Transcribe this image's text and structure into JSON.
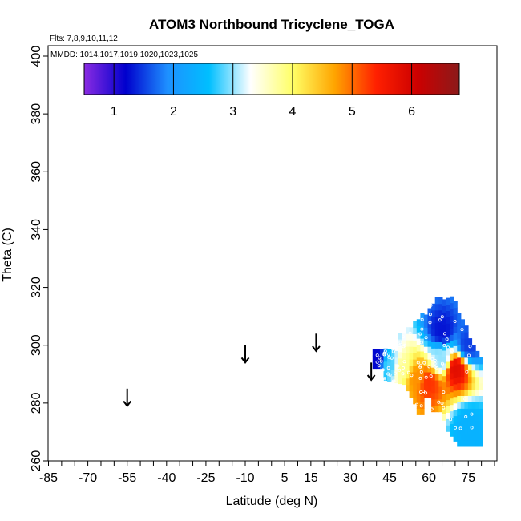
{
  "chart_data": {
    "type": "heatmap",
    "title": "ATOM3 Northbound Tricyclene_TOGA",
    "flights_note": "Flts: 7,8,9,10,11,12",
    "dates_note": "MMDD: 1014,1017,1019,1020,1023,1025",
    "xlabel": "Latitude (deg N)",
    "ylabel": "Theta (C)",
    "xlim": [
      -85,
      85
    ],
    "ylim": [
      260,
      400
    ],
    "x_ticks": [
      "-85",
      "-70",
      "-55",
      "-40",
      "-25",
      "-10",
      "5",
      "15",
      "30",
      "45",
      "60",
      "75"
    ],
    "x_tick_values": [
      -85,
      -70,
      -55,
      -40,
      -25,
      -10,
      5,
      15,
      30,
      45,
      60,
      75
    ],
    "y_ticks": [
      "260",
      "280",
      "300",
      "320",
      "340",
      "360",
      "380",
      "400"
    ],
    "y_tick_values": [
      260,
      280,
      300,
      320,
      340,
      360,
      380,
      400
    ],
    "colorbar": {
      "range": [
        0.5,
        6.8
      ],
      "ticks": [
        "1",
        "2",
        "3",
        "4",
        "5",
        "6"
      ],
      "tick_values": [
        1,
        2,
        3,
        4,
        5,
        6
      ],
      "stops": [
        "#8a2be2",
        "#0000cd",
        "#1e90ff",
        "#00bfff",
        "#ffffff",
        "#ffff66",
        "#ffa500",
        "#ff2000",
        "#cc0000",
        "#8b1a1a"
      ]
    },
    "tropopause_arrows": [
      {
        "lat": -55,
        "theta": 285
      },
      {
        "lat": -10,
        "theta": 300
      },
      {
        "lat": 17,
        "theta": 304
      },
      {
        "lat": 38,
        "theta": 294
      }
    ],
    "field": {
      "lat_range": [
        38,
        80
      ],
      "theta_range": [
        262,
        318
      ],
      "description_points": [
        {
          "lat": 40,
          "theta": 295,
          "value": 1.2
        },
        {
          "lat": 45,
          "theta": 293,
          "value": 2.8
        },
        {
          "lat": 50,
          "theta": 292,
          "value": 3.8
        },
        {
          "lat": 55,
          "theta": 289,
          "value": 4.8
        },
        {
          "lat": 60,
          "theta": 287,
          "value": 5.3
        },
        {
          "lat": 65,
          "theta": 295,
          "value": 3.0
        },
        {
          "lat": 70,
          "theta": 292,
          "value": 5.8
        },
        {
          "lat": 75,
          "theta": 300,
          "value": 1.5
        },
        {
          "lat": 75,
          "theta": 272,
          "value": 2.4
        },
        {
          "lat": 65,
          "theta": 305,
          "value": 1.3
        }
      ]
    }
  }
}
